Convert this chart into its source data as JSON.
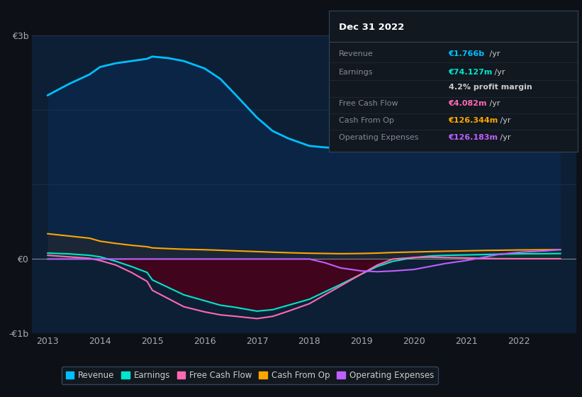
{
  "bg_color": "#0d1117",
  "plot_bg_color": "#0d1f35",
  "years": [
    2013,
    2013.4,
    2013.8,
    2014,
    2014.3,
    2014.6,
    2014.9,
    2015.0,
    2015.3,
    2015.6,
    2016.0,
    2016.3,
    2016.6,
    2017.0,
    2017.3,
    2017.6,
    2018.0,
    2018.3,
    2018.6,
    2019.0,
    2019.3,
    2019.6,
    2020.0,
    2020.3,
    2020.6,
    2021.0,
    2021.3,
    2021.6,
    2022.0,
    2022.5,
    2022.8
  ],
  "revenue": [
    2200,
    2350,
    2480,
    2580,
    2630,
    2660,
    2690,
    2720,
    2700,
    2660,
    2560,
    2420,
    2200,
    1900,
    1720,
    1620,
    1520,
    1500,
    1490,
    1530,
    1560,
    1580,
    1580,
    1560,
    1520,
    1450,
    1490,
    1560,
    1630,
    1700,
    1766
  ],
  "earnings": [
    80,
    70,
    50,
    30,
    -30,
    -100,
    -180,
    -280,
    -380,
    -480,
    -560,
    -620,
    -650,
    -700,
    -680,
    -620,
    -540,
    -440,
    -340,
    -200,
    -100,
    -30,
    20,
    40,
    50,
    55,
    60,
    65,
    70,
    72,
    74.127
  ],
  "free_cash_flow": [
    50,
    30,
    10,
    -20,
    -80,
    -180,
    -300,
    -420,
    -530,
    -640,
    -710,
    -750,
    -770,
    -800,
    -770,
    -700,
    -600,
    -480,
    -360,
    -200,
    -80,
    0,
    20,
    25,
    20,
    15,
    10,
    5,
    4.082,
    4.082,
    4.082
  ],
  "cash_from_op": [
    340,
    310,
    280,
    240,
    210,
    185,
    165,
    150,
    140,
    132,
    125,
    118,
    110,
    100,
    92,
    85,
    78,
    75,
    72,
    75,
    80,
    88,
    95,
    100,
    105,
    110,
    115,
    118,
    122,
    125,
    126.344
  ],
  "op_expenses": [
    0,
    0,
    0,
    0,
    0,
    0,
    0,
    0,
    0,
    0,
    0,
    0,
    0,
    0,
    0,
    0,
    0,
    -50,
    -120,
    -160,
    -170,
    -160,
    -140,
    -100,
    -60,
    -20,
    20,
    60,
    90,
    110,
    126.183
  ],
  "ylim": [
    -1000,
    3000
  ],
  "legend": [
    {
      "label": "Revenue",
      "color": "#00bfff"
    },
    {
      "label": "Earnings",
      "color": "#00e5cc"
    },
    {
      "label": "Free Cash Flow",
      "color": "#ff69b4"
    },
    {
      "label": "Cash From Op",
      "color": "#ffa500"
    },
    {
      "label": "Operating Expenses",
      "color": "#bf5fff"
    }
  ]
}
